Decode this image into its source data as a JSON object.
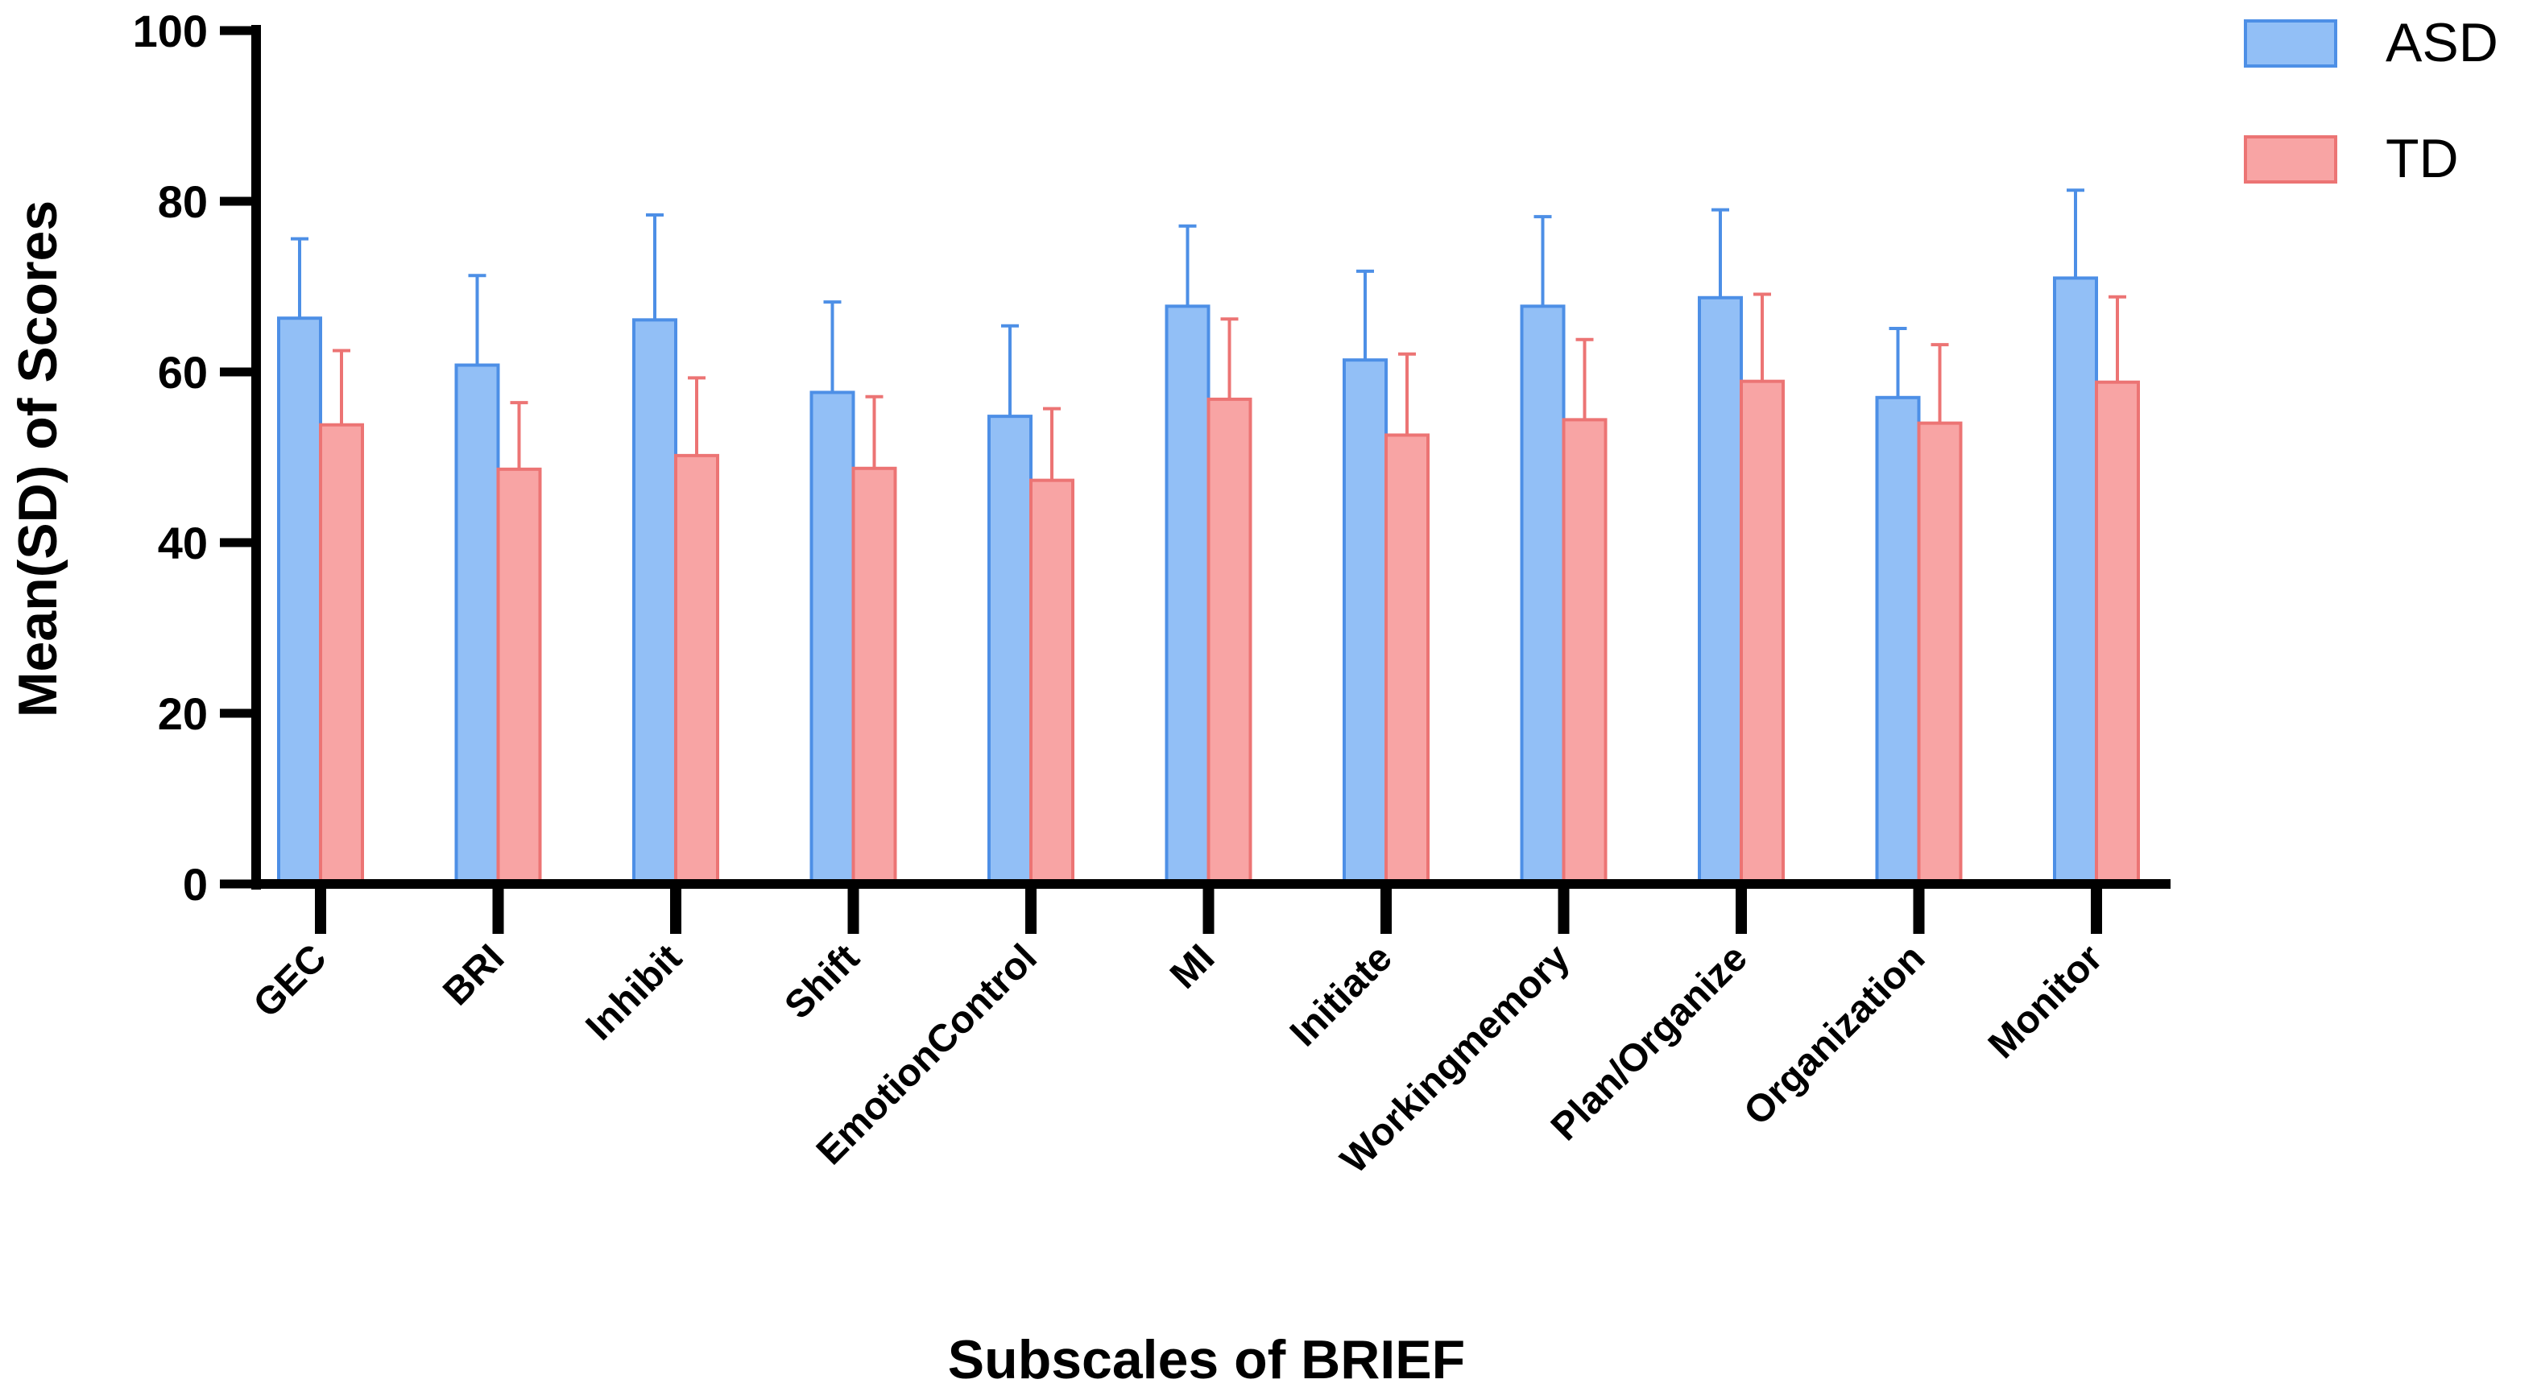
{
  "chart_data": {
    "type": "bar",
    "title": "",
    "xlabel": "Subscales of BRIEF",
    "ylabel": "Mean(SD) of Scores",
    "ylim": [
      0,
      100
    ],
    "yticks": [
      0,
      20,
      40,
      60,
      80,
      100
    ],
    "grid": false,
    "legend_position": "top-right",
    "categories": [
      "GEC",
      "BRI",
      "Inhibit",
      "Shift",
      "EmotionControl",
      "MI",
      "Initiate",
      "Workingmemory",
      "Plan/Organize",
      "Organization",
      "Monitor"
    ],
    "series": [
      {
        "name": "ASD",
        "fill": "#92bff6",
        "stroke": "#4d8fe6",
        "values": [
          66.3,
          60.8,
          66.1,
          57.6,
          54.8,
          67.7,
          61.4,
          67.7,
          68.7,
          57.0,
          71.0
        ],
        "errors": [
          9.3,
          10.5,
          12.3,
          10.6,
          10.6,
          9.4,
          10.4,
          10.5,
          10.3,
          8.1,
          10.3
        ]
      },
      {
        "name": "TD",
        "fill": "#f8a4a4",
        "stroke": "#ec7474",
        "values": [
          53.8,
          48.6,
          50.2,
          48.7,
          47.3,
          56.8,
          52.6,
          54.4,
          58.9,
          54.0,
          58.8
        ],
        "errors": [
          8.7,
          7.8,
          9.1,
          8.4,
          8.4,
          9.4,
          9.5,
          9.4,
          10.2,
          9.2,
          10.0
        ]
      }
    ]
  }
}
